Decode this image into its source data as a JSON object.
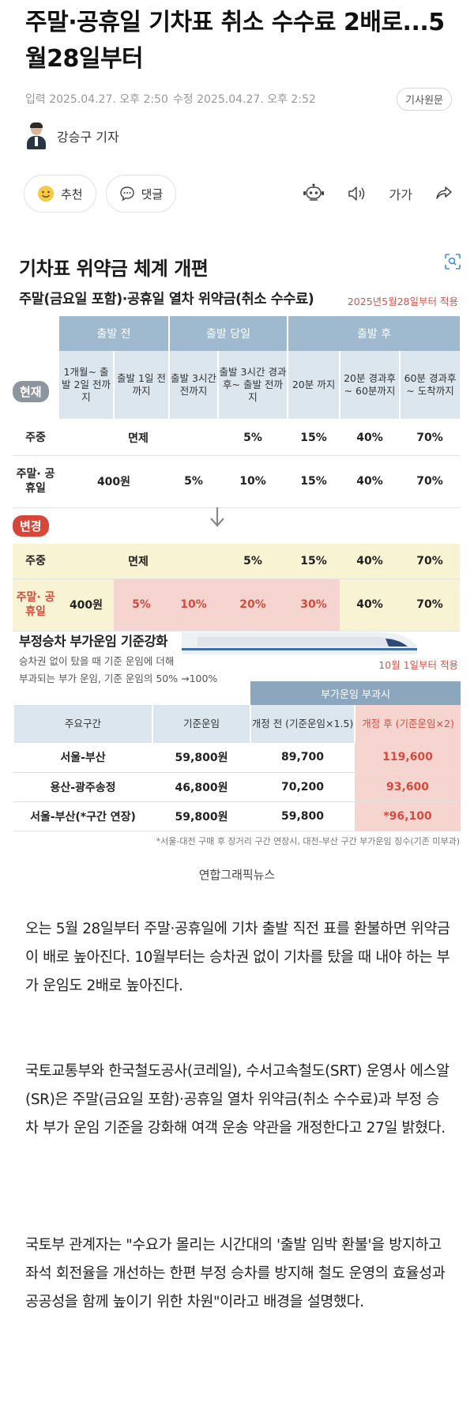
{
  "article": {
    "headline": "주말·공휴일 기차표 취소 수수료 2배로...5월28일부터",
    "meta": {
      "published": "입력 2025.04.27. 오후 2:50",
      "modified": "수정 2025.04.27. 오후 2:52",
      "original_button": "기사원문"
    },
    "reporter": "강승구 기자",
    "actions": {
      "recommend": "추천",
      "comment": "댓글",
      "font_size": "가가"
    },
    "caption": "연합그래픽뉴스",
    "paragraphs": [
      "오는 5월 28일부터 주말·공휴일에 기차 출발 직전 표를 환불하면 위약금이 배로 높아진다. 10월부터는 승차권 없이 기차를 탔을 때 내야 하는 부가 운임도 2배로 높아진다.",
      "국토교통부와 한국철도공사(코레일), 수서고속철도(SRT) 운영사 에스알(SR)은 주말(금요일 포함)·공휴일 열차 위약금(취소 수수료)과 부정 승차 부가 운임 기준을 강화해 여객 운송 약관을 개정한다고 27일 밝혔다.",
      "국토부 관계자는 \"수요가 몰리는 시간대의 '출발 임박 환불'을 방지하고 좌석 회전율을 개선하는 한편 부정 승차를 방지해 철도 운영의 효율성과 공공성을 함께 높이기 위한 차원\"이라고 배경을 설명했다."
    ]
  },
  "graphic": {
    "title": "기차표 위약금 체계 개편",
    "subtitle": "주말(금요일 포함)·공휴일 열차 위약금(취소 수수료)",
    "effective_date": "2025년5월28일부터 적용",
    "groups": [
      "출발 전",
      "출발 당일",
      "출발 후"
    ],
    "columns": [
      "1개월~ 출발 2일 전까지",
      "출발 1일 전까지",
      "출발 3시간 전까지",
      "출발 3시간 경과후~ 출발 전까지",
      "20분 까지",
      "20분 경과후~ 60분까지",
      "60분 경과후~ 도착까지"
    ],
    "current_badge": "현재",
    "changed_badge": "변경",
    "current_rows": [
      {
        "label": "주중",
        "free": "면제",
        "values": [
          "5%",
          "15%",
          "40%",
          "70%"
        ]
      },
      {
        "label": "주말· 공휴일",
        "values": [
          "400원",
          "5%",
          "10%",
          "15%",
          "40%",
          "70%"
        ]
      }
    ],
    "changed_rows": [
      {
        "label": "주중",
        "free": "면제",
        "values": [
          "5%",
          "15%",
          "40%",
          "70%"
        ]
      },
      {
        "label": "주말· 공휴일",
        "values": [
          "400원",
          "5%",
          "10%",
          "20%",
          "30%",
          "40%",
          "70%"
        ]
      }
    ],
    "fare": {
      "subtitle": "부정승차 부가운임 기준강화",
      "note_line1": "승차권 없이 탔을 때 기준 운임에 더해",
      "note_line2": "부과되는 부가 운임, 기준 운임의 50% →100%",
      "effective_date": "10월 1일부터 적용",
      "surcharge_header": "부가운임 부과시",
      "headers": [
        "주요구간",
        "기준운임",
        "개정 전 (기준운임×1.5)",
        "개정 후 (기준운임×2)"
      ],
      "rows": [
        [
          "서울-부산",
          "59,800원",
          "89,700",
          "119,600"
        ],
        [
          "용산-광주송정",
          "46,800원",
          "70,200",
          "93,600"
        ],
        [
          "서울-부산(*구간 연장)",
          "59,800원",
          "59,800",
          "*96,100"
        ]
      ],
      "footnote": "*서울-대전 구매 후 장거리 구간 연장시, 대전-부산 구간 부가운임 징수(기존 미부과)"
    }
  }
}
